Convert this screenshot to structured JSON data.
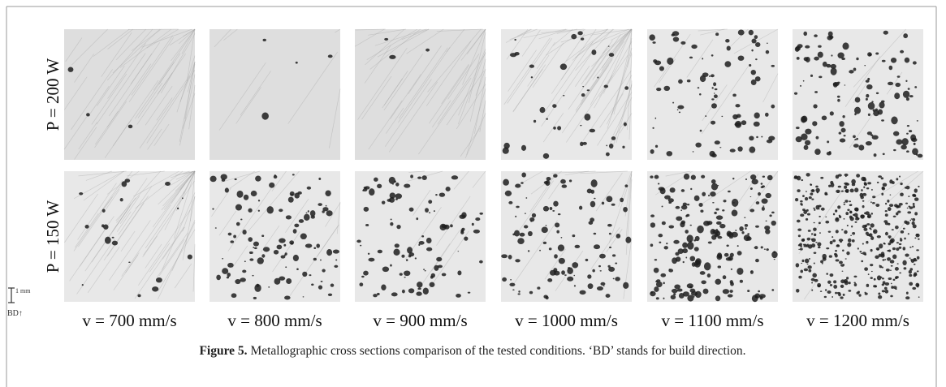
{
  "figure": {
    "rows": [
      "P = 200 W",
      "P = 150 W"
    ],
    "columns": [
      "v = 700 mm/s",
      "v = 800 mm/s",
      "v = 900 mm/s",
      "v = 1000 mm/s",
      "v = 1100 mm/s",
      "v = 1200 mm/s"
    ],
    "scale_bar": "1 mm",
    "direction": "BD↑",
    "caption": {
      "label": "Figure 5.",
      "text": " Metallographic cross sections comparison of the tested conditions. ‘BD’ stands for build direction."
    }
  }
}
